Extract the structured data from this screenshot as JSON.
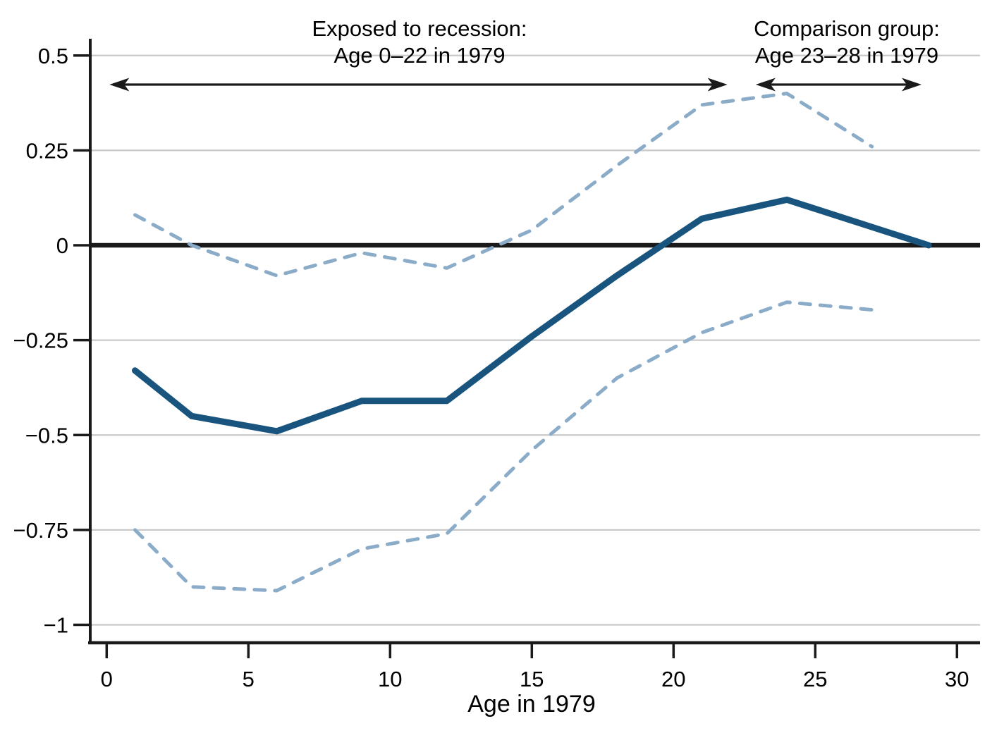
{
  "chart_data": {
    "type": "line",
    "title": "",
    "xlabel": "Age in 1979",
    "ylabel": "",
    "xlim": [
      0,
      30
    ],
    "ylim": [
      -1.05,
      0.55
    ],
    "grid": "horizontal",
    "zero_line": true,
    "legend": "none",
    "xticks": [
      "0",
      "5",
      "10",
      "15",
      "20",
      "25",
      "30"
    ],
    "xtick_values": [
      0,
      5,
      10,
      15,
      20,
      25,
      30
    ],
    "yticks": [
      "0.5",
      "0.25",
      "0",
      "−0.25",
      "−0.5",
      "−0.75",
      "−1"
    ],
    "ytick_values": [
      0.5,
      0.25,
      0,
      -0.25,
      -0.5,
      -0.75,
      -1
    ],
    "series": [
      {
        "name": "point-estimate",
        "style": "solid",
        "color": "#18547D",
        "stroke_width": 9,
        "ages": [
          1,
          3,
          6,
          9,
          12,
          15,
          18,
          21,
          24,
          29
        ],
        "values": [
          -0.33,
          -0.45,
          -0.49,
          -0.41,
          -0.41,
          -0.24,
          -0.08,
          0.07,
          0.12,
          0.0
        ]
      },
      {
        "name": "ci-upper",
        "style": "dashed",
        "color": "#8BACC8",
        "stroke_width": 5,
        "ages": [
          1,
          3,
          6,
          9,
          12,
          15,
          18,
          21,
          24,
          27
        ],
        "values": [
          0.08,
          0.0,
          -0.08,
          -0.02,
          -0.06,
          0.04,
          0.21,
          0.37,
          0.4,
          0.26
        ]
      },
      {
        "name": "ci-lower",
        "style": "dashed",
        "color": "#8BACC8",
        "stroke_width": 5,
        "ages": [
          1,
          3,
          6,
          9,
          12,
          15,
          18,
          21,
          24,
          27
        ],
        "values": [
          -0.75,
          -0.9,
          -0.91,
          -0.8,
          -0.76,
          -0.54,
          -0.35,
          -0.23,
          -0.15,
          -0.17
        ]
      }
    ],
    "annotations": [
      {
        "line1": "Exposed to recession:",
        "line2": "Age 0–22 in 1979",
        "arrow_age_span": [
          0.1,
          21.9
        ],
        "arrow_style": "double-headed"
      },
      {
        "line1": "Comparison group:",
        "line2": "Age 23–28 in 1979",
        "arrow_age_span": [
          22.9,
          28.75
        ],
        "arrow_style": "double-headed"
      }
    ],
    "colors": {
      "estimate_line": "#18547D",
      "ci_line": "#8BACC8",
      "zero_line": "#1A1A1A",
      "gridline": "#C9C9C9",
      "axis": "#1A1A1A",
      "text": "#000000",
      "background": "#FFFFFF"
    }
  }
}
